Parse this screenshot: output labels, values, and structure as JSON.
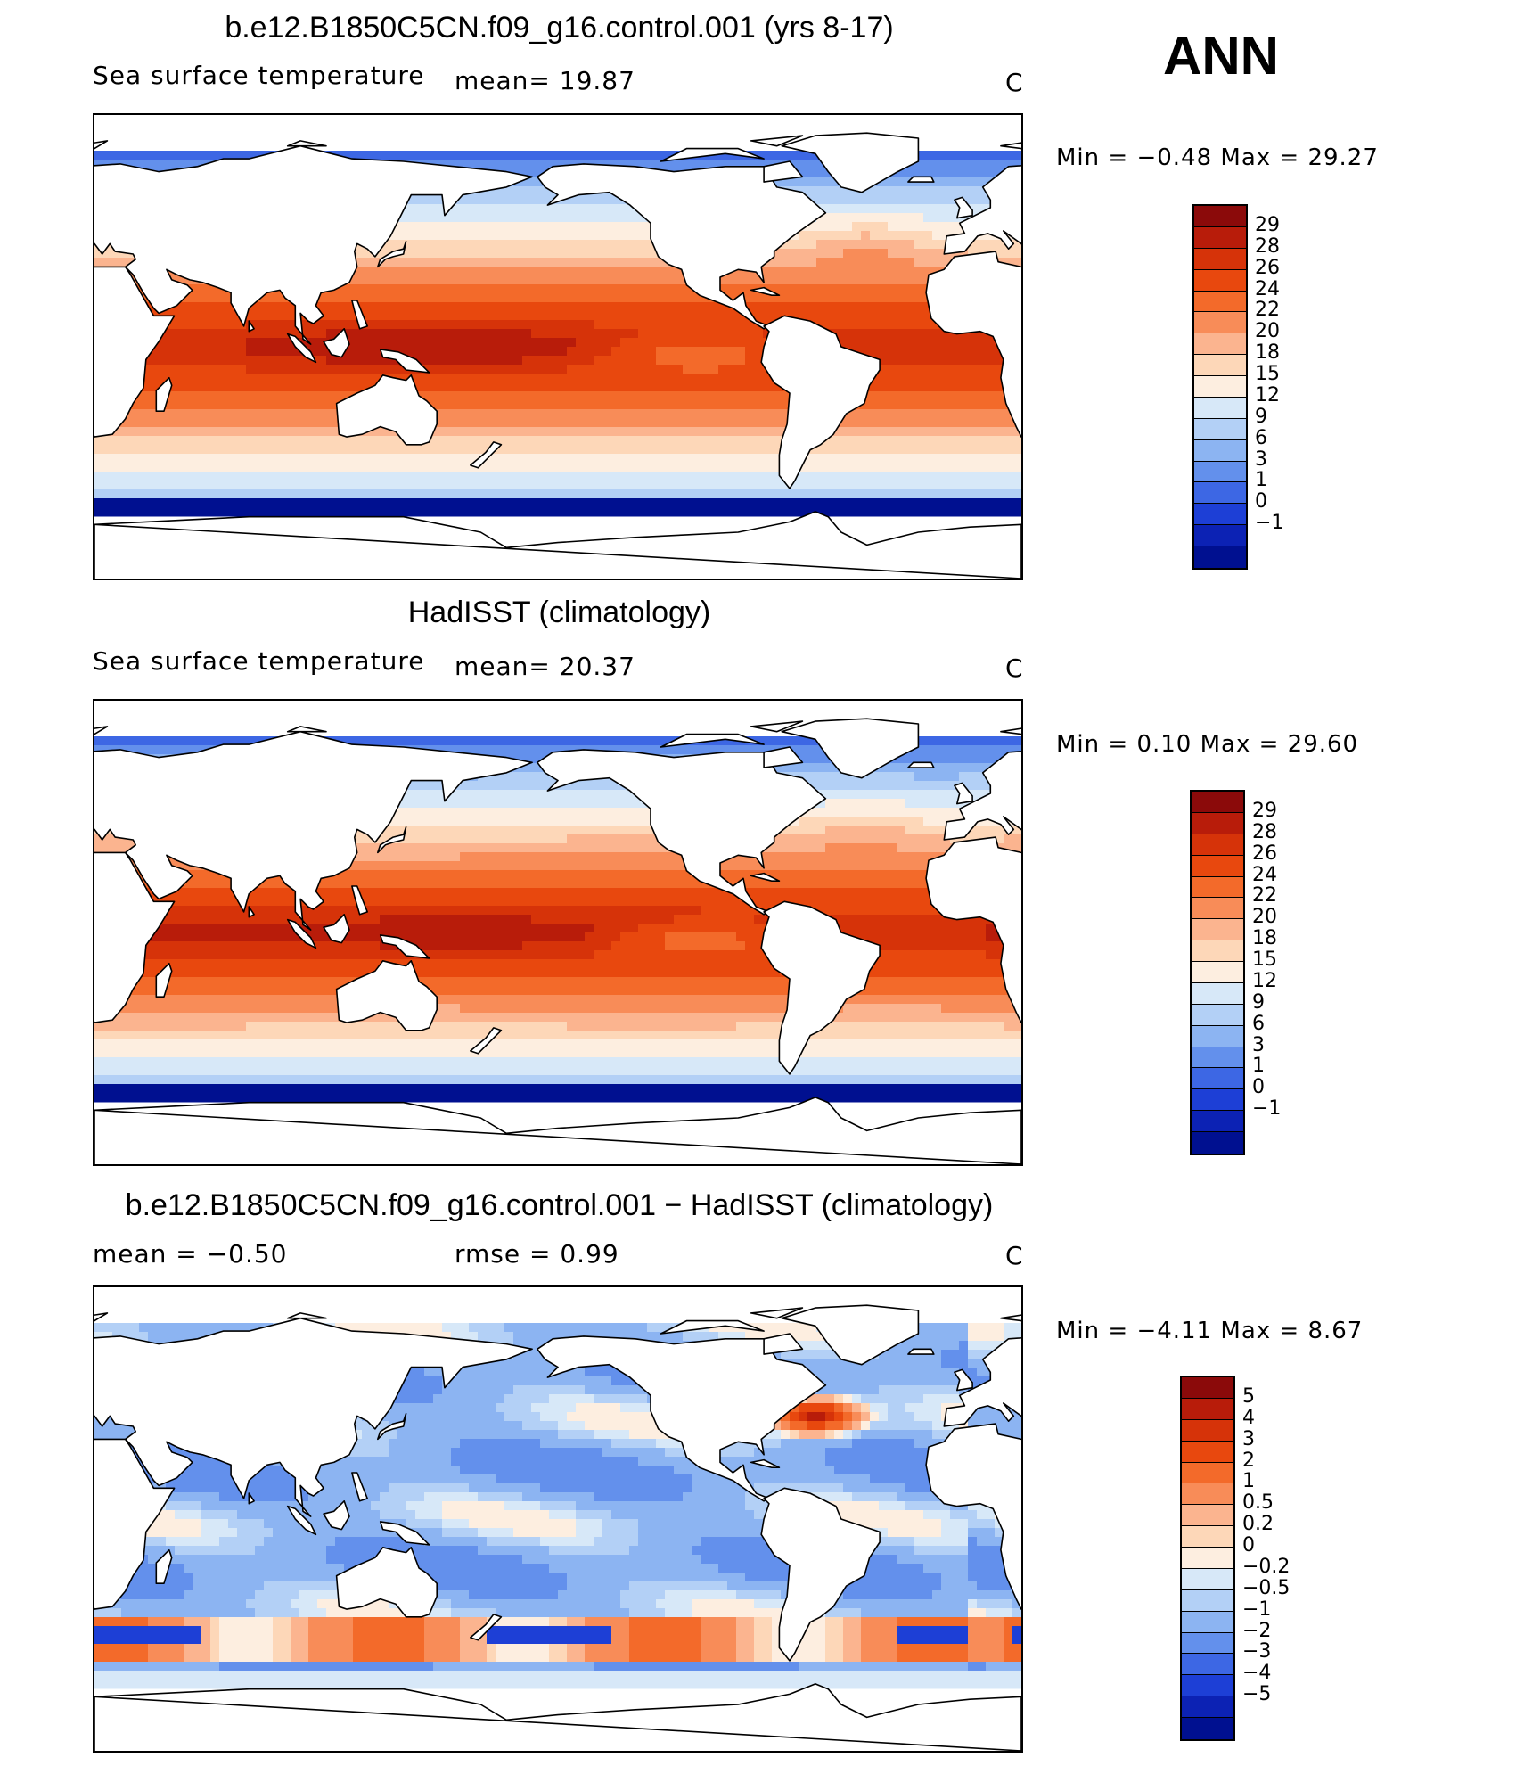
{
  "season": "ANN",
  "units": "C",
  "panels": [
    {
      "title": "b.e12.B1850C5CN.f09_g16.control.001 (yrs 8-17)",
      "left_label": "Sea surface temperature",
      "mean_text": "mean=   19.87",
      "min_max_text": "Min =   -0.48  Max =   29.27",
      "colorbar": {
        "labels": [
          "29",
          "28",
          "26",
          "24",
          "22",
          "20",
          "18",
          "15",
          "12",
          "9",
          "6",
          "3",
          "1",
          "0",
          "-1"
        ],
        "colors": [
          "#8b0a0a",
          "#b81c0a",
          "#d63309",
          "#e8480e",
          "#f36a2a",
          "#f88c58",
          "#fbb48f",
          "#fdd7b8",
          "#fdeee0",
          "#d7e8f8",
          "#b3d0f6",
          "#8cb4f2",
          "#6390ec",
          "#3d67e4",
          "#1d3fd6",
          "#0c22b4",
          "#001090"
        ]
      },
      "field": "model_sst"
    },
    {
      "title": "HadISST (climatology)",
      "left_label": "Sea surface temperature",
      "mean_text": "mean=   20.37",
      "min_max_text": "Min =    0.10  Max =   29.60",
      "colorbar": {
        "labels": [
          "29",
          "28",
          "26",
          "24",
          "22",
          "20",
          "18",
          "15",
          "12",
          "9",
          "6",
          "3",
          "1",
          "0",
          "-1"
        ],
        "colors": [
          "#8b0a0a",
          "#b81c0a",
          "#d63309",
          "#e8480e",
          "#f36a2a",
          "#f88c58",
          "#fbb48f",
          "#fdd7b8",
          "#fdeee0",
          "#d7e8f8",
          "#b3d0f6",
          "#8cb4f2",
          "#6390ec",
          "#3d67e4",
          "#1d3fd6",
          "#0c22b4",
          "#001090"
        ]
      },
      "field": "obs_sst"
    },
    {
      "title": "b.e12.B1850C5CN.f09_g16.control.001 - HadISST (climatology)",
      "left_label": "mean =   -0.50",
      "mean_text": "rmse =    0.99",
      "min_max_text": "Min =   -4.11  Max =    8.67",
      "colorbar": {
        "labels": [
          "5",
          "4",
          "3",
          "2",
          "1",
          "0.5",
          "0.2",
          "0",
          "-0.2",
          "-0.5",
          "-1",
          "-2",
          "-3",
          "-4",
          "-5"
        ],
        "colors": [
          "#8b0a0a",
          "#b81c0a",
          "#d63309",
          "#e8480e",
          "#f36a2a",
          "#f88c58",
          "#fbb48f",
          "#fdd7b8",
          "#fdeee0",
          "#d7e8f8",
          "#b3d0f6",
          "#8cb4f2",
          "#6390ec",
          "#3d67e4",
          "#1d3fd6",
          "#0c22b4",
          "#001090"
        ]
      },
      "field": "difference"
    }
  ]
}
